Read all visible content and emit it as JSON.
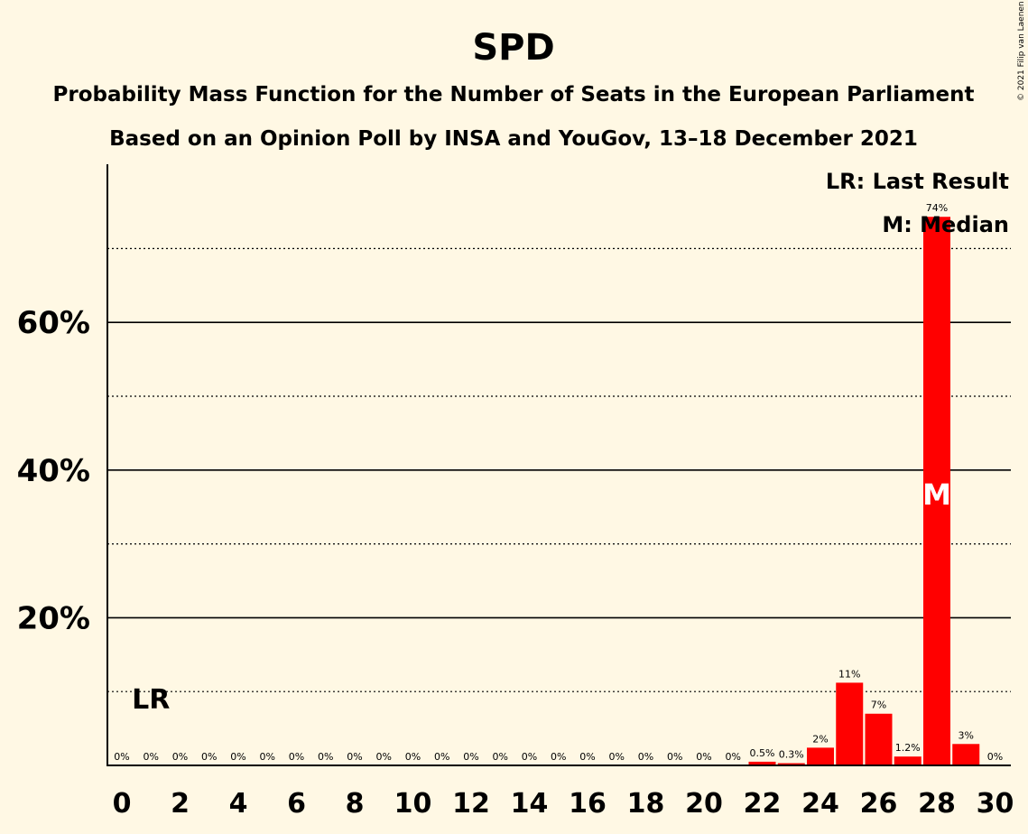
{
  "chart_data": {
    "type": "bar",
    "title": "SPD",
    "subtitle": "Probability Mass Function for the Number of Seats in the European Parliament",
    "subtitle2": "Based on an Opinion Poll by INSA and YouGov, 13–18 December 2021",
    "copyright": "© 2021 Filip van Laenen",
    "x": [
      0,
      1,
      2,
      3,
      4,
      5,
      6,
      7,
      8,
      9,
      10,
      11,
      12,
      13,
      14,
      15,
      16,
      17,
      18,
      19,
      20,
      21,
      22,
      23,
      24,
      25,
      26,
      27,
      28,
      29,
      30
    ],
    "values": [
      0,
      0,
      0,
      0,
      0,
      0,
      0,
      0,
      0,
      0,
      0,
      0,
      0,
      0,
      0,
      0,
      0,
      0,
      0,
      0,
      0,
      0,
      0.5,
      0.3,
      2.4,
      11.2,
      7.0,
      1.2,
      74.3,
      2.9,
      0
    ],
    "data_labels": [
      "0%",
      "0%",
      "0%",
      "0%",
      "0%",
      "0%",
      "0%",
      "0%",
      "0%",
      "0%",
      "0%",
      "0%",
      "0%",
      "0%",
      "0%",
      "0%",
      "0%",
      "0%",
      "0%",
      "0%",
      "0%",
      "0%",
      "0.5%",
      "0.3%",
      "2%",
      "11%",
      "7%",
      "1.2%",
      "74%",
      "3%",
      "0%"
    ],
    "xticks": [
      "0",
      "2",
      "4",
      "6",
      "8",
      "10",
      "12",
      "14",
      "16",
      "18",
      "20",
      "22",
      "24",
      "26",
      "28",
      "30"
    ],
    "yticks": [
      {
        "value": 20,
        "label": "20%"
      },
      {
        "value": 40,
        "label": "40%"
      },
      {
        "value": 60,
        "label": "60%"
      }
    ],
    "minor_grid": [
      10,
      30,
      50,
      70
    ],
    "ylim": [
      0,
      81
    ],
    "xlim": [
      -0.5,
      30.5
    ],
    "last_result": {
      "seat": 1,
      "label": "LR"
    },
    "median": {
      "seat": 28,
      "label": "M"
    },
    "legend": [
      "LR: Last Result",
      "M: Median"
    ],
    "legend_position": "top-right",
    "bar_color": "#ff0000",
    "background": "#fff8e4"
  }
}
